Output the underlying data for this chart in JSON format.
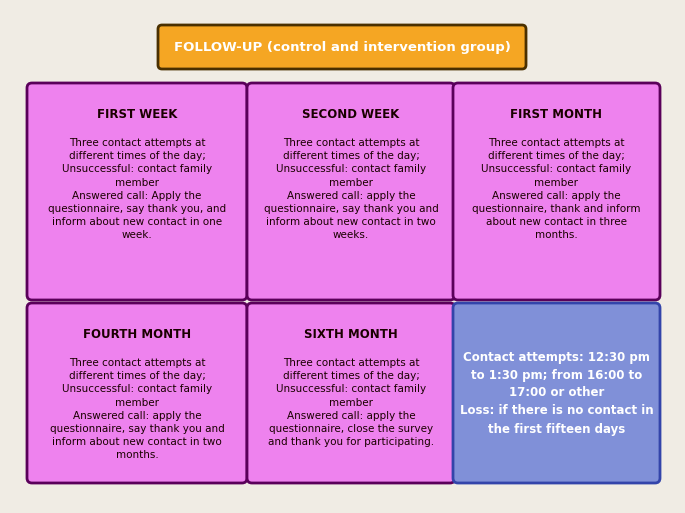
{
  "background_color": "#f0ece4",
  "title": "FOLLOW-UP (control and intervention group)",
  "title_bg": "#f5a623",
  "title_border": "#4a3000",
  "title_text_color": "#ffffff",
  "box_bg": "#ee82ee",
  "box_border": "#5a005a",
  "special_bg": "#8090d8",
  "special_border": "#3344aa",
  "special_text_color": "#ffffff",
  "body_text_color": "#1a0000",
  "header_text_color": "#1a0000",
  "boxes": [
    {
      "title": "FIRST WEEK",
      "body": "Three contact attempts at\ndifferent times of the day;\nUnsuccessful: contact family\nmember\nAnswered call: Apply the\nquestionnaire, say thank you, and\ninform about new contact in one\nweek.",
      "col": 0,
      "row": 0,
      "special": false
    },
    {
      "title": "SECOND WEEK",
      "body": "Three contact attempts at\ndifferent times of the day;\nUnsuccessful: contact family\nmember\nAnswered call: apply the\nquestionnaire, say thank you and\ninform about new contact in two\nweeks.",
      "col": 1,
      "row": 0,
      "special": false
    },
    {
      "title": "FIRST MONTH",
      "body": "Three contact attempts at\ndifferent times of the day;\nUnsuccessful: contact family\nmember\nAnswered call: apply the\nquestionnaire, thank and inform\nabout new contact in three\nmonths.",
      "col": 2,
      "row": 0,
      "special": false
    },
    {
      "title": "FOURTH MONTH",
      "body": "Three contact attempts at\ndifferent times of the day;\nUnsuccessful: contact family\nmember\nAnswered call: apply the\nquestionnaire, say thank you and\ninform about new contact in two\nmonths.",
      "col": 0,
      "row": 1,
      "special": false
    },
    {
      "title": "SIXTH MONTH",
      "body": "Three contact attempts at\ndifferent times of the day;\nUnsuccessful: contact family\nmember\nAnswered call: apply the\nquestionnaire, close the survey\nand thank you for participating.",
      "col": 1,
      "row": 1,
      "special": false
    },
    {
      "title": "",
      "body": "Contact attempts: 12:30 pm\nto 1:30 pm; from 16:00 to\n17:00 or other\nLoss: if there is no contact in\nthe first fifteen days",
      "col": 2,
      "row": 1,
      "special": true
    }
  ]
}
